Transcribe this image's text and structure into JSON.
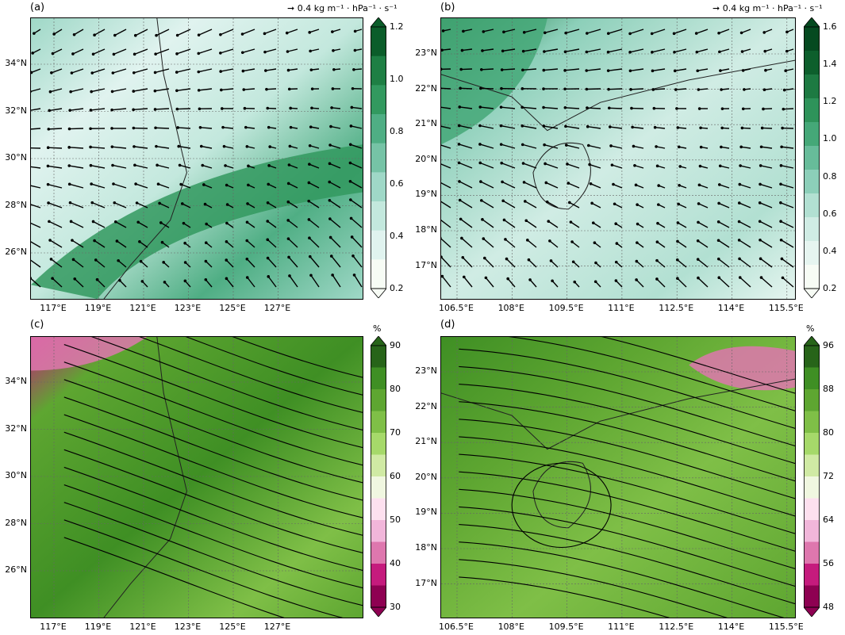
{
  "panels": [
    {
      "id": "a",
      "label": "(a)",
      "reference_vector": "0.4 kg m⁻¹ · hPa⁻¹ · s⁻¹",
      "lat_labels": [
        "34°N",
        "32°N",
        "30°N",
        "28°N",
        "26°N"
      ],
      "lon_labels": [
        "117°E",
        "119°E",
        "121°E",
        "123°E",
        "125°E",
        "127°E"
      ],
      "colorbar": {
        "ticks": [
          "1.2",
          "1.0",
          "0.8",
          "0.6",
          "0.4",
          "0.2"
        ],
        "unit": "",
        "colors": [
          "#f7fcf5",
          "#e0f3ef",
          "#c3e8dd",
          "#9fd8c7",
          "#76c3a6",
          "#4fae84",
          "#32995f",
          "#1e7f44",
          "#0b5d2a"
        ]
      },
      "overlay": "vectors"
    },
    {
      "id": "b",
      "label": "(b)",
      "reference_vector": "0.4 kg m⁻¹ · hPa⁻¹ · s⁻¹",
      "lat_labels": [
        "23°N",
        "22°N",
        "21°N",
        "20°N",
        "19°N",
        "18°N",
        "17°N"
      ],
      "lon_labels": [
        "106.5°E",
        "108°E",
        "109.5°E",
        "111°E",
        "112.5°E",
        "114°E",
        "115.5°E"
      ],
      "colorbar": {
        "ticks": [
          "1.6",
          "1.4",
          "1.2",
          "1.0",
          "0.8",
          "0.6",
          "0.4",
          "0.2"
        ],
        "unit": "",
        "colors": [
          "#f7fcf5",
          "#e6f5f0",
          "#d0ece4",
          "#b2e0d2",
          "#8ccfb9",
          "#67bc9a",
          "#45a878",
          "#2e935a",
          "#1d7a42",
          "#0d5f2c",
          "#054a20"
        ]
      },
      "overlay": "vectors"
    },
    {
      "id": "c",
      "label": "(c)",
      "reference_vector": "",
      "lat_labels": [
        "34°N",
        "32°N",
        "30°N",
        "28°N",
        "26°N"
      ],
      "lon_labels": [
        "117°E",
        "119°E",
        "121°E",
        "123°E",
        "125°E",
        "127°E"
      ],
      "colorbar": {
        "ticks": [
          "90",
          "80",
          "70",
          "60",
          "50",
          "40",
          "30"
        ],
        "unit": "%",
        "colors": [
          "#8e0152",
          "#c51b7d",
          "#de77ae",
          "#f1b6da",
          "#fde0ef",
          "#f0f7e0",
          "#d0eaa4",
          "#a6d96a",
          "#7fbf47",
          "#5ea631",
          "#3f8f24",
          "#276419"
        ]
      },
      "overlay": "streamlines"
    },
    {
      "id": "d",
      "label": "(d)",
      "reference_vector": "",
      "lat_labels": [
        "23°N",
        "22°N",
        "21°N",
        "20°N",
        "19°N",
        "18°N",
        "17°N"
      ],
      "lon_labels": [
        "106.5°E",
        "108°E",
        "109.5°E",
        "111°E",
        "112.5°E",
        "114°E",
        "115.5°E"
      ],
      "colorbar": {
        "ticks": [
          "96",
          "88",
          "80",
          "72",
          "64",
          "56",
          "48"
        ],
        "unit": "%",
        "colors": [
          "#8e0152",
          "#c51b7d",
          "#de77ae",
          "#f1b6da",
          "#fde0ef",
          "#f0f7e0",
          "#d0eaa4",
          "#a6d96a",
          "#7fbf47",
          "#5ea631",
          "#3f8f24",
          "#276419"
        ]
      },
      "overlay": "streamlines"
    }
  ]
}
